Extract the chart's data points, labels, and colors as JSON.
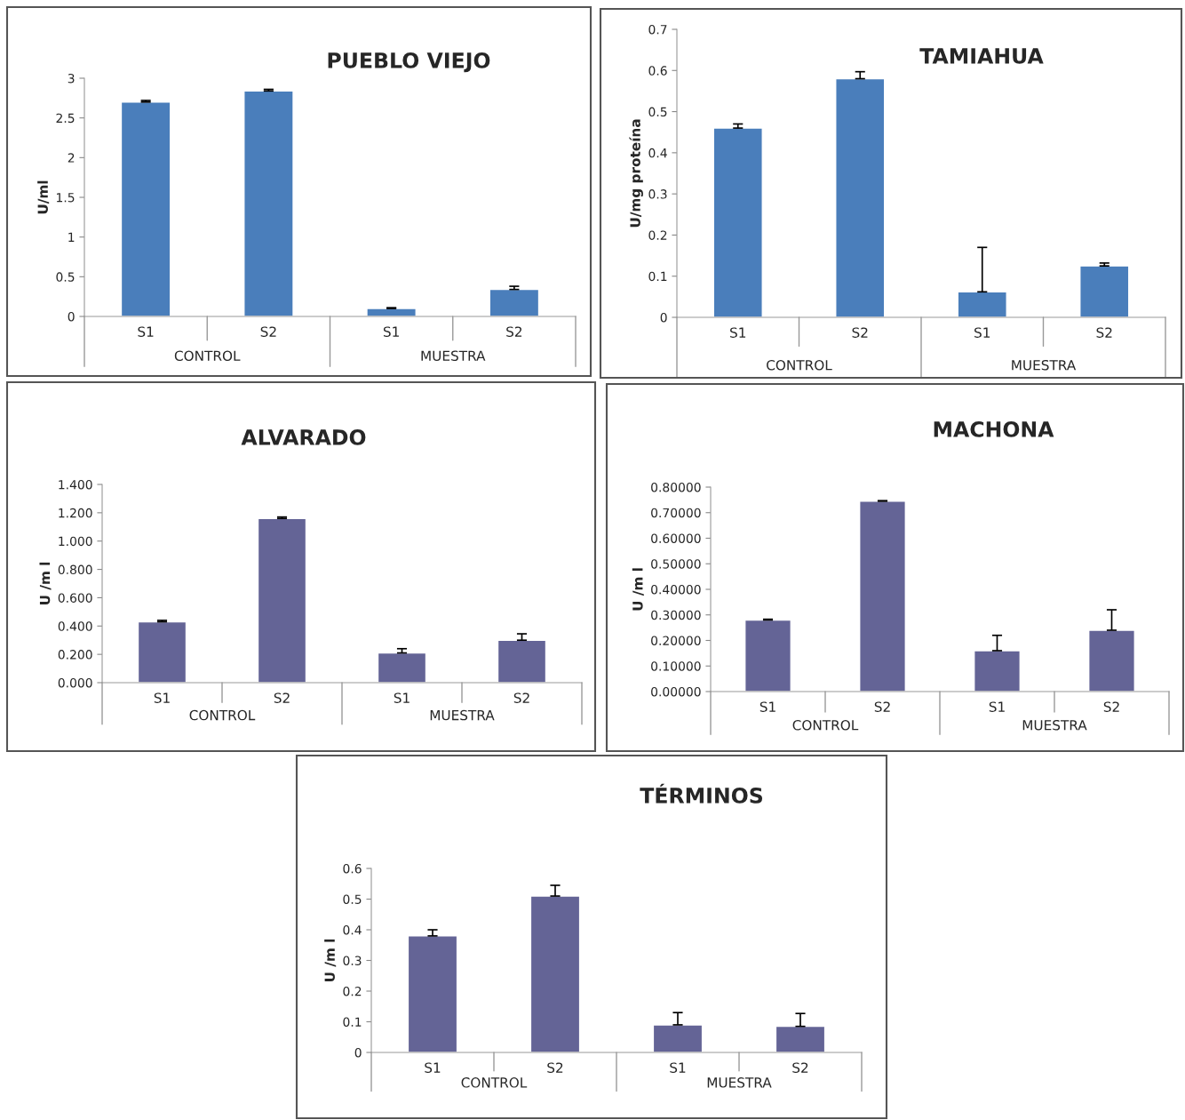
{
  "chart_data": [
    {
      "type": "bar",
      "title": "PUEBLO VIEJO",
      "ylabel": "U/ml",
      "categories": [
        "S1",
        "S2",
        "S1",
        "S2"
      ],
      "values": [
        2.7,
        2.84,
        0.1,
        0.34
      ],
      "errors": [
        [
          2.7,
          2.72
        ],
        [
          2.84,
          2.86
        ],
        [
          0.1,
          0.11
        ],
        [
          0.34,
          0.38
        ]
      ],
      "color": "#4a7ebb",
      "ylim": [
        0,
        3
      ],
      "yticks": [
        0,
        0.5,
        1,
        1.5,
        2,
        2.5,
        3
      ],
      "annotations": [
        "CONTROL",
        "MUESTRA"
      ]
    },
    {
      "type": "bar",
      "title": "TAMIAHUA",
      "ylabel": "U/mg proteína",
      "categories": [
        "S1",
        "S2",
        "S1",
        "S2"
      ],
      "values": [
        0.46,
        0.58,
        0.062,
        0.125
      ],
      "errors": [
        [
          0.46,
          0.47
        ],
        [
          0.58,
          0.597
        ],
        [
          0.062,
          0.17
        ],
        [
          0.125,
          0.132
        ]
      ],
      "color": "#4a7ebb",
      "ylim": [
        0,
        0.7
      ],
      "yticks": [
        0,
        0.1,
        0.2,
        0.3,
        0.4,
        0.5,
        0.6,
        0.7
      ],
      "annotations": [
        "CONTROL",
        "MUESTRA"
      ]
    },
    {
      "type": "bar",
      "title": "ALVARADO",
      "ylabel": "U /m l",
      "categories": [
        "S1",
        "S2",
        "S1",
        "S2"
      ],
      "values": [
        0.43,
        1.16,
        0.21,
        0.3
      ],
      "errors": [
        [
          0.43,
          0.44
        ],
        [
          1.16,
          1.17
        ],
        [
          0.21,
          0.24
        ],
        [
          0.3,
          0.345
        ]
      ],
      "color": "#646496",
      "ylim": [
        0,
        1.4
      ],
      "yticks": [
        {
          "value": 0,
          "label": "0.000"
        },
        {
          "value": 0.2,
          "label": "0.200"
        },
        {
          "value": 0.4,
          "label": "0.400"
        },
        {
          "value": 0.6,
          "label": "0.600"
        },
        {
          "value": 0.8,
          "label": "0.800"
        },
        {
          "value": 1.0,
          "label": "1.000"
        },
        {
          "value": 1.2,
          "label": "1.200"
        },
        {
          "value": 1.4,
          "label": "1.400"
        }
      ],
      "annotations": [
        "CONTROL",
        "MUESTRA"
      ]
    },
    {
      "type": "bar",
      "title": "MACHONA",
      "ylabel": "U /m l",
      "categories": [
        "S1",
        "S2",
        "S1",
        "S2"
      ],
      "values": [
        0.28,
        0.745,
        0.16,
        0.24
      ],
      "errors": [
        [
          0.28,
          0.283
        ],
        [
          0.745,
          0.747
        ],
        [
          0.16,
          0.22
        ],
        [
          0.24,
          0.32
        ]
      ],
      "color": "#646496",
      "ylim": [
        0,
        0.8
      ],
      "yticks": [
        {
          "value": 0,
          "label": "0.00000"
        },
        {
          "value": 0.1,
          "label": "0.10000"
        },
        {
          "value": 0.2,
          "label": "0.20000"
        },
        {
          "value": 0.3,
          "label": "0.30000"
        },
        {
          "value": 0.4,
          "label": "0.40000"
        },
        {
          "value": 0.5,
          "label": "0.50000"
        },
        {
          "value": 0.6,
          "label": "0.60000"
        },
        {
          "value": 0.7,
          "label": "0.70000"
        },
        {
          "value": 0.8,
          "label": "0.80000"
        }
      ],
      "annotations": [
        "CONTROL",
        "MUESTRA"
      ]
    },
    {
      "type": "bar",
      "title": "TÉRMINOS",
      "ylabel": "U /m l",
      "categories": [
        "S1",
        "S2",
        "S1",
        "S2"
      ],
      "values": [
        0.38,
        0.51,
        0.09,
        0.085
      ],
      "errors": [
        [
          0.38,
          0.4
        ],
        [
          0.51,
          0.545
        ],
        [
          0.09,
          0.13
        ],
        [
          0.085,
          0.127
        ]
      ],
      "color": "#646496",
      "ylim": [
        0,
        0.6
      ],
      "yticks": [
        0,
        0.1,
        0.2,
        0.3,
        0.4,
        0.5,
        0.6
      ],
      "annotations": [
        "CONTROL",
        "MUESTRA"
      ]
    }
  ]
}
